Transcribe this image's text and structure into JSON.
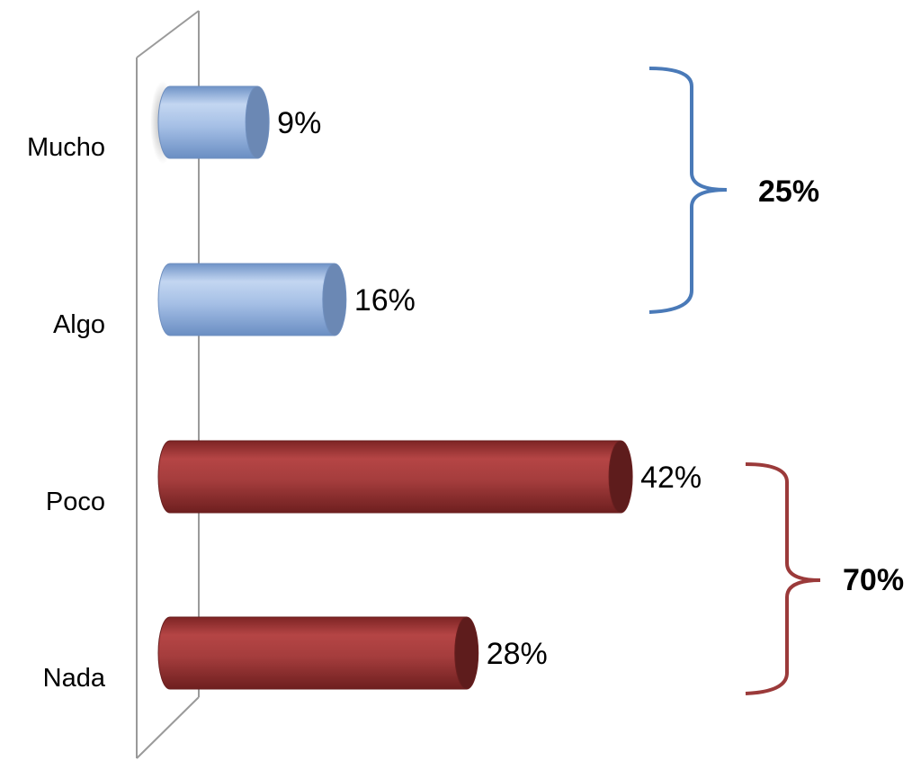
{
  "chart_data": {
    "type": "bar",
    "orientation": "horizontal",
    "categories": [
      "Mucho",
      "Algo",
      "Poco",
      "Nada"
    ],
    "values": [
      9,
      16,
      42,
      28
    ],
    "value_labels": [
      "9%",
      "16%",
      "42%",
      "28%"
    ],
    "bar_colors": [
      "#8fb0dd",
      "#8fb0dd",
      "#9b3535",
      "#9b3535"
    ],
    "groups": [
      {
        "label": "25%",
        "members": [
          "Mucho",
          "Algo"
        ],
        "color": "#4a7ab8"
      },
      {
        "label": "70%",
        "members": [
          "Poco",
          "Nada"
        ],
        "color": "#9b3a3a"
      }
    ],
    "title": "",
    "xlabel": "",
    "ylabel": "",
    "grid": false,
    "legend": "none"
  }
}
